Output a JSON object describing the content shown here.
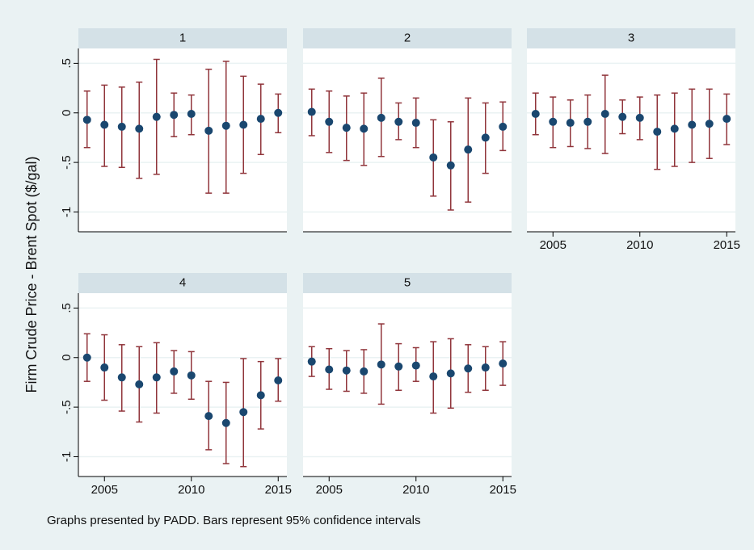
{
  "figure": {
    "ylabel": "Firm Crude Price - Brent Spot ($/gal)",
    "note": "Graphs presented by PADD. Bars represent 95% confidence intervals"
  },
  "chart_data": [
    {
      "type": "errorbar",
      "title": "1",
      "x": [
        2004,
        2005,
        2006,
        2007,
        2008,
        2009,
        2010,
        2011,
        2012,
        2013,
        2014,
        2015
      ],
      "values": [
        -0.07,
        -0.12,
        -0.14,
        -0.16,
        -0.04,
        -0.02,
        -0.01,
        -0.18,
        -0.13,
        -0.12,
        -0.06,
        0.0
      ],
      "lower": [
        -0.35,
        -0.54,
        -0.55,
        -0.66,
        -0.62,
        -0.24,
        -0.22,
        -0.81,
        -0.81,
        -0.61,
        -0.42,
        -0.2
      ],
      "upper": [
        0.22,
        0.28,
        0.26,
        0.31,
        0.54,
        0.2,
        0.18,
        0.44,
        0.52,
        0.37,
        0.29,
        0.19
      ],
      "color": "#1a476f",
      "bar_color": "#90353b",
      "xlim": [
        2003.5,
        2015.5
      ],
      "ylim": [
        -1.2,
        0.65
      ],
      "xticks": [
        2005,
        2010,
        2015
      ],
      "yticks": [
        -1,
        {
          "value": -0.5,
          "label": "-.5"
        },
        0,
        {
          "value": 0.5,
          "label": ".5"
        }
      ],
      "xtick_labels": false,
      "ytick_labels": true,
      "grid": true
    },
    {
      "type": "errorbar",
      "title": "2",
      "x": [
        2004,
        2005,
        2006,
        2007,
        2008,
        2009,
        2010,
        2011,
        2012,
        2013,
        2014,
        2015
      ],
      "values": [
        0.01,
        -0.09,
        -0.15,
        -0.16,
        -0.05,
        -0.09,
        -0.1,
        -0.45,
        -0.53,
        -0.37,
        -0.25,
        -0.14
      ],
      "lower": [
        -0.23,
        -0.4,
        -0.48,
        -0.53,
        -0.44,
        -0.27,
        -0.35,
        -0.84,
        -0.98,
        -0.9,
        -0.61,
        -0.38
      ],
      "upper": [
        0.24,
        0.22,
        0.17,
        0.2,
        0.35,
        0.1,
        0.15,
        -0.07,
        -0.09,
        0.15,
        0.1,
        0.11
      ],
      "color": "#1a476f",
      "bar_color": "#90353b",
      "xlim": [
        2003.5,
        2015.5
      ],
      "ylim": [
        -1.2,
        0.65
      ],
      "xticks": [
        2005,
        2010,
        2015
      ],
      "yticks": [
        -1,
        {
          "value": -0.5,
          "label": "-.5"
        },
        0,
        {
          "value": 0.5,
          "label": ".5"
        }
      ],
      "xtick_labels": false,
      "ytick_labels": false,
      "grid": true
    },
    {
      "type": "errorbar",
      "title": "3",
      "x": [
        2004,
        2005,
        2006,
        2007,
        2008,
        2009,
        2010,
        2011,
        2012,
        2013,
        2014,
        2015
      ],
      "values": [
        -0.01,
        -0.09,
        -0.1,
        -0.09,
        -0.01,
        -0.04,
        -0.05,
        -0.19,
        -0.16,
        -0.12,
        -0.11,
        -0.06
      ],
      "lower": [
        -0.22,
        -0.35,
        -0.34,
        -0.36,
        -0.41,
        -0.21,
        -0.27,
        -0.57,
        -0.54,
        -0.5,
        -0.46,
        -0.32
      ],
      "upper": [
        0.2,
        0.16,
        0.13,
        0.18,
        0.38,
        0.13,
        0.16,
        0.18,
        0.2,
        0.24,
        0.24,
        0.19
      ],
      "color": "#1a476f",
      "bar_color": "#90353b",
      "xlim": [
        2003.5,
        2015.5
      ],
      "ylim": [
        -1.2,
        0.65
      ],
      "xticks": [
        2005,
        2010,
        2015
      ],
      "yticks": [
        -1,
        {
          "value": -0.5,
          "label": "-.5"
        },
        0,
        {
          "value": 0.5,
          "label": ".5"
        }
      ],
      "xtick_labels": true,
      "ytick_labels": false,
      "grid": true
    },
    {
      "type": "errorbar",
      "title": "4",
      "x": [
        2004,
        2005,
        2006,
        2007,
        2008,
        2009,
        2010,
        2011,
        2012,
        2013,
        2014,
        2015
      ],
      "values": [
        0.0,
        -0.1,
        -0.2,
        -0.27,
        -0.2,
        -0.14,
        -0.18,
        -0.59,
        -0.66,
        -0.55,
        -0.38,
        -0.23
      ],
      "lower": [
        -0.24,
        -0.43,
        -0.54,
        -0.65,
        -0.56,
        -0.36,
        -0.42,
        -0.93,
        -1.07,
        -1.1,
        -0.72,
        -0.44
      ],
      "upper": [
        0.24,
        0.23,
        0.13,
        0.11,
        0.15,
        0.07,
        0.06,
        -0.24,
        -0.25,
        -0.01,
        -0.04,
        -0.01
      ],
      "color": "#1a476f",
      "bar_color": "#90353b",
      "xlim": [
        2003.5,
        2015.5
      ],
      "ylim": [
        -1.2,
        0.65
      ],
      "xticks": [
        2005,
        2010,
        2015
      ],
      "yticks": [
        -1,
        {
          "value": -0.5,
          "label": "-.5"
        },
        0,
        {
          "value": 0.5,
          "label": ".5"
        }
      ],
      "xtick_labels": true,
      "ytick_labels": true,
      "grid": true
    },
    {
      "type": "errorbar",
      "title": "5",
      "x": [
        2004,
        2005,
        2006,
        2007,
        2008,
        2009,
        2010,
        2011,
        2012,
        2013,
        2014,
        2015
      ],
      "values": [
        -0.04,
        -0.12,
        -0.13,
        -0.14,
        -0.07,
        -0.09,
        -0.08,
        -0.19,
        -0.16,
        -0.11,
        -0.1,
        -0.06
      ],
      "lower": [
        -0.19,
        -0.32,
        -0.34,
        -0.36,
        -0.47,
        -0.33,
        -0.24,
        -0.56,
        -0.51,
        -0.35,
        -0.33,
        -0.28
      ],
      "upper": [
        0.11,
        0.09,
        0.07,
        0.08,
        0.34,
        0.14,
        0.1,
        0.16,
        0.19,
        0.13,
        0.11,
        0.16
      ],
      "color": "#1a476f",
      "bar_color": "#90353b",
      "xlim": [
        2003.5,
        2015.5
      ],
      "ylim": [
        -1.2,
        0.65
      ],
      "xticks": [
        2005,
        2010,
        2015
      ],
      "yticks": [
        -1,
        {
          "value": -0.5,
          "label": "-.5"
        },
        0,
        {
          "value": 0.5,
          "label": ".5"
        }
      ],
      "xtick_labels": true,
      "ytick_labels": false,
      "grid": true
    }
  ]
}
